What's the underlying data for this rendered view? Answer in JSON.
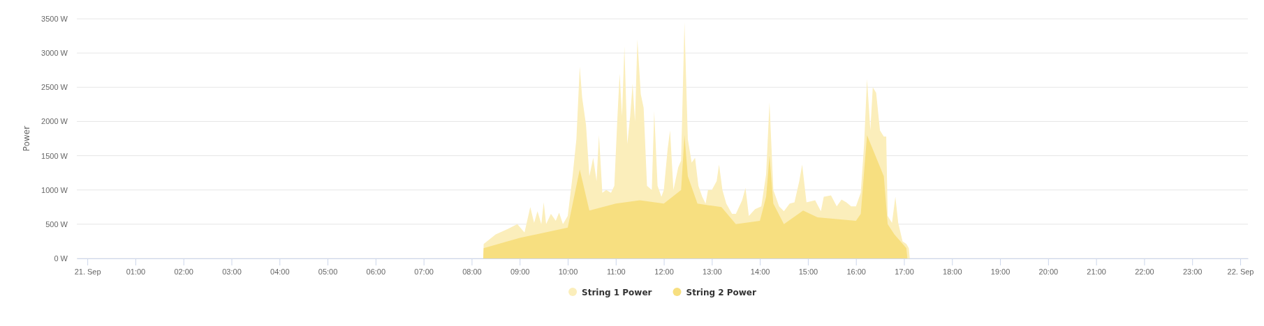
{
  "chart_data": {
    "type": "area",
    "ylabel": "Power",
    "xlim": [
      -0.22,
      24.16
    ],
    "ylim": [
      0,
      3500
    ],
    "xticks": [
      {
        "value": 0,
        "label": "21. Sep"
      },
      {
        "value": 1,
        "label": "01:00"
      },
      {
        "value": 2,
        "label": "02:00"
      },
      {
        "value": 3,
        "label": "03:00"
      },
      {
        "value": 4,
        "label": "04:00"
      },
      {
        "value": 5,
        "label": "05:00"
      },
      {
        "value": 6,
        "label": "06:00"
      },
      {
        "value": 7,
        "label": "07:00"
      },
      {
        "value": 8,
        "label": "08:00"
      },
      {
        "value": 9,
        "label": "09:00"
      },
      {
        "value": 10,
        "label": "10:00"
      },
      {
        "value": 11,
        "label": "11:00"
      },
      {
        "value": 12,
        "label": "12:00"
      },
      {
        "value": 13,
        "label": "13:00"
      },
      {
        "value": 14,
        "label": "14:00"
      },
      {
        "value": 15,
        "label": "15:00"
      },
      {
        "value": 16,
        "label": "16:00"
      },
      {
        "value": 17,
        "label": "17:00"
      },
      {
        "value": 18,
        "label": "18:00"
      },
      {
        "value": 19,
        "label": "19:00"
      },
      {
        "value": 20,
        "label": "20:00"
      },
      {
        "value": 21,
        "label": "21:00"
      },
      {
        "value": 22,
        "label": "22:00"
      },
      {
        "value": 23,
        "label": "23:00"
      },
      {
        "value": 24,
        "label": "22. Sep"
      }
    ],
    "yticks": [
      {
        "value": 0,
        "label": "0 W"
      },
      {
        "value": 500,
        "label": "500 W"
      },
      {
        "value": 1000,
        "label": "1000 W"
      },
      {
        "value": 1500,
        "label": "1500 W"
      },
      {
        "value": 2000,
        "label": "2000 W"
      },
      {
        "value": 2500,
        "label": "2500 W"
      },
      {
        "value": 3000,
        "label": "3000 W"
      },
      {
        "value": 3500,
        "label": "3500 W"
      }
    ],
    "grid": "y",
    "legend": "bottom",
    "series": [
      {
        "name": "String 1 Power",
        "color": "#fbeebb",
        "x": [
          8.24,
          8.25,
          8.5,
          8.75,
          8.95,
          9.1,
          9.22,
          9.3,
          9.37,
          9.45,
          9.5,
          9.55,
          9.65,
          9.75,
          9.82,
          9.9,
          10.0,
          10.1,
          10.18,
          10.25,
          10.3,
          10.38,
          10.45,
          10.53,
          10.6,
          10.65,
          10.72,
          10.8,
          10.9,
          10.97,
          11.03,
          11.08,
          11.13,
          11.18,
          11.24,
          11.3,
          11.35,
          11.4,
          11.45,
          11.52,
          11.58,
          11.65,
          11.75,
          11.8,
          11.87,
          11.95,
          12.0,
          12.08,
          12.13,
          12.2,
          12.3,
          12.36,
          12.43,
          12.5,
          12.58,
          12.65,
          12.72,
          12.8,
          12.87,
          12.92,
          13.0,
          13.1,
          13.15,
          13.22,
          13.3,
          13.42,
          13.5,
          13.63,
          13.7,
          13.77,
          13.9,
          14.03,
          14.13,
          14.2,
          14.28,
          14.4,
          14.5,
          14.62,
          14.72,
          14.82,
          14.88,
          14.97,
          15.15,
          15.27,
          15.33,
          15.48,
          15.6,
          15.7,
          15.8,
          15.9,
          16.0,
          16.1,
          16.17,
          16.23,
          16.3,
          16.35,
          16.42,
          16.5,
          16.58,
          16.63,
          16.66,
          16.75,
          16.82,
          16.88,
          16.97,
          17.05,
          17.1,
          17.12
        ],
        "values": [
          0,
          210,
          350,
          430,
          500,
          380,
          750,
          520,
          690,
          500,
          820,
          500,
          650,
          550,
          670,
          500,
          620,
          1200,
          1740,
          2800,
          2350,
          1950,
          1200,
          1470,
          1130,
          1800,
          960,
          1000,
          960,
          1060,
          2000,
          2700,
          2080,
          3100,
          1670,
          2080,
          2550,
          2000,
          3200,
          2400,
          2200,
          1060,
          1000,
          2150,
          1060,
          900,
          1000,
          1600,
          1870,
          1000,
          1330,
          1430,
          3450,
          1740,
          1400,
          1470,
          1060,
          900,
          800,
          1000,
          1000,
          1130,
          1370,
          1000,
          800,
          650,
          650,
          850,
          1030,
          620,
          720,
          760,
          1230,
          2280,
          1000,
          760,
          690,
          800,
          820,
          1130,
          1370,
          820,
          850,
          690,
          900,
          920,
          760,
          860,
          820,
          760,
          760,
          960,
          1670,
          2620,
          1870,
          2500,
          2420,
          1870,
          1780,
          1780,
          620,
          520,
          900,
          520,
          250,
          210,
          150,
          0
        ]
      },
      {
        "name": "String 2 Power",
        "color": "#f7df80",
        "x": [
          8.24,
          8.25,
          9.0,
          10.0,
          10.25,
          10.45,
          11.0,
          11.5,
          12.0,
          12.36,
          12.43,
          12.5,
          12.7,
          13.2,
          13.5,
          14.0,
          14.13,
          14.2,
          14.28,
          14.5,
          14.9,
          15.2,
          16.0,
          16.1,
          16.23,
          16.58,
          16.66,
          16.8,
          17.05,
          17.07
        ],
        "values": [
          0,
          150,
          300,
          450,
          1300,
          700,
          800,
          850,
          800,
          1000,
          1800,
          1200,
          800,
          750,
          500,
          550,
          900,
          1500,
          800,
          500,
          700,
          600,
          550,
          650,
          1800,
          1200,
          500,
          350,
          150,
          0
        ]
      }
    ]
  }
}
